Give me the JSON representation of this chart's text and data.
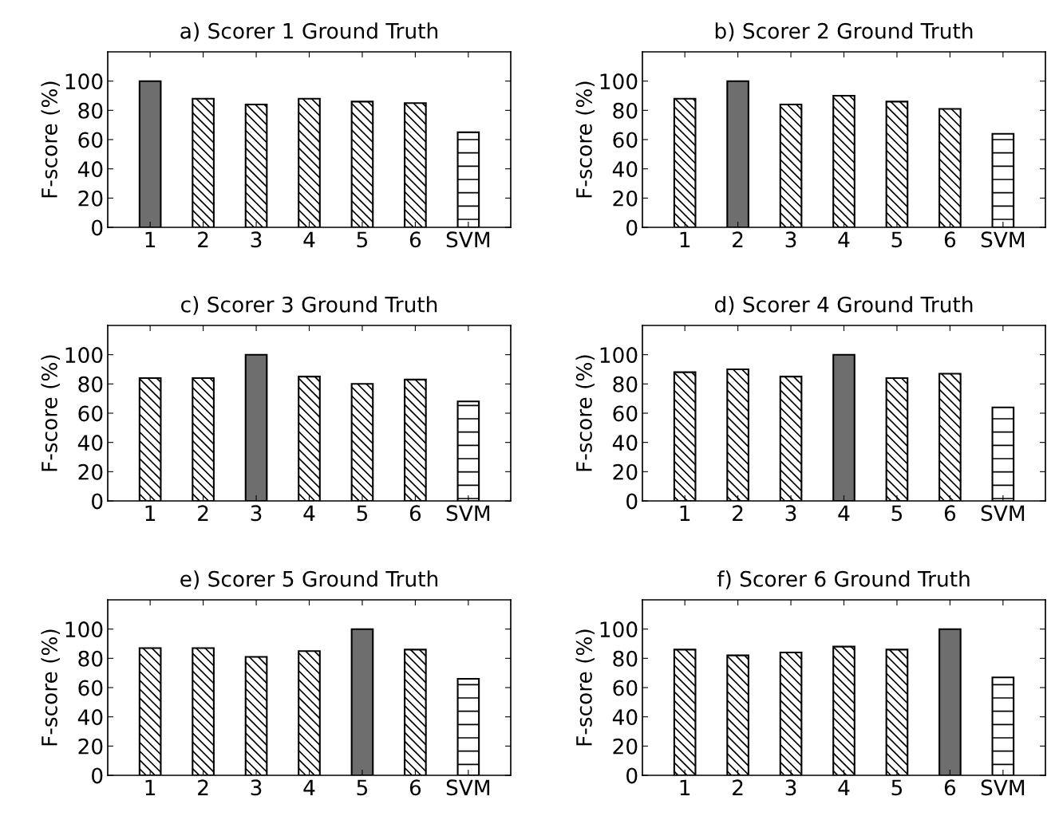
{
  "chart_data": [
    {
      "type": "bar",
      "title": "a) Scorer 1 Ground Truth",
      "ylabel": "F-score (%)",
      "categories": [
        "1",
        "2",
        "3",
        "4",
        "5",
        "6",
        "SVM"
      ],
      "values": [
        100,
        88,
        84,
        88,
        86,
        85,
        65
      ],
      "colors": [
        "#6e6e6e",
        "#000000",
        "#000000",
        "#000000",
        "#000000",
        "#000000",
        "#000000"
      ],
      "ylim": [
        0,
        120
      ],
      "yticks": [
        0,
        20,
        40,
        60,
        80,
        100
      ],
      "grid": false,
      "legend": false
    },
    {
      "type": "bar",
      "title": "b) Scorer 2 Ground Truth",
      "ylabel": "F-score (%)",
      "categories": [
        "1",
        "2",
        "3",
        "4",
        "5",
        "6",
        "SVM"
      ],
      "values": [
        88,
        100,
        84,
        90,
        86,
        81,
        64
      ],
      "colors": [
        "#000000",
        "#6e6e6e",
        "#000000",
        "#000000",
        "#000000",
        "#000000",
        "#000000"
      ],
      "ylim": [
        0,
        120
      ],
      "yticks": [
        0,
        20,
        40,
        60,
        80,
        100
      ],
      "grid": false,
      "legend": false
    },
    {
      "type": "bar",
      "title": "c) Scorer 3 Ground Truth",
      "ylabel": "F-score (%)",
      "categories": [
        "1",
        "2",
        "3",
        "4",
        "5",
        "6",
        "SVM"
      ],
      "values": [
        84,
        84,
        100,
        85,
        80,
        83,
        68
      ],
      "colors": [
        "#000000",
        "#000000",
        "#6e6e6e",
        "#000000",
        "#000000",
        "#000000",
        "#000000"
      ],
      "ylim": [
        0,
        120
      ],
      "yticks": [
        0,
        20,
        40,
        60,
        80,
        100
      ],
      "grid": false,
      "legend": false
    },
    {
      "type": "bar",
      "title": "d) Scorer 4 Ground Truth",
      "ylabel": "F-score (%)",
      "categories": [
        "1",
        "2",
        "3",
        "4",
        "5",
        "6",
        "SVM"
      ],
      "values": [
        88,
        90,
        85,
        100,
        84,
        87,
        64
      ],
      "colors": [
        "#000000",
        "#000000",
        "#000000",
        "#6e6e6e",
        "#000000",
        "#000000",
        "#000000"
      ],
      "ylim": [
        0,
        120
      ],
      "yticks": [
        0,
        20,
        40,
        60,
        80,
        100
      ],
      "grid": false,
      "legend": false
    },
    {
      "type": "bar",
      "title": "e) Scorer 5 Ground Truth",
      "ylabel": "F-score (%)",
      "categories": [
        "1",
        "2",
        "3",
        "4",
        "5",
        "6",
        "SVM"
      ],
      "values": [
        87,
        87,
        81,
        85,
        100,
        86,
        66
      ],
      "colors": [
        "#000000",
        "#000000",
        "#000000",
        "#000000",
        "#6e6e6e",
        "#000000",
        "#000000"
      ],
      "ylim": [
        0,
        120
      ],
      "yticks": [
        0,
        20,
        40,
        60,
        80,
        100
      ],
      "grid": false,
      "legend": false
    },
    {
      "type": "bar",
      "title": "f) Scorer 6 Ground Truth",
      "ylabel": "F-score (%)",
      "categories": [
        "1",
        "2",
        "3",
        "4",
        "5",
        "6",
        "SVM"
      ],
      "values": [
        86,
        82,
        84,
        88,
        86,
        100,
        67
      ],
      "colors": [
        "#000000",
        "#000000",
        "#000000",
        "#000000",
        "#000000",
        "#6e6e6e",
        "#000000"
      ],
      "ylim": [
        0,
        120
      ],
      "yticks": [
        0,
        20,
        40,
        60,
        80,
        100
      ],
      "grid": false,
      "legend": false
    }
  ]
}
